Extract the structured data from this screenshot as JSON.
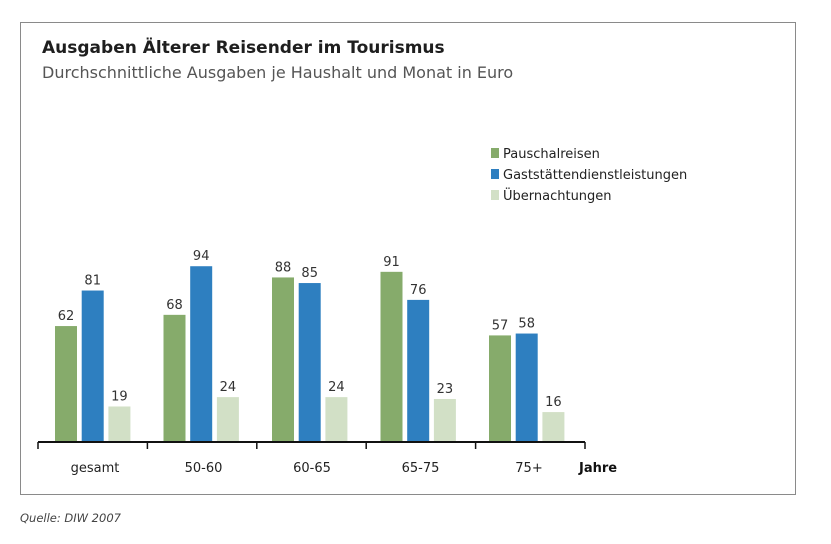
{
  "colors": {
    "pauschal": "#86ab6b",
    "gast": "#2e7fc0",
    "ueber": "#d2e0c6",
    "axis": "#111111"
  },
  "chart_data": {
    "type": "bar",
    "title": "Ausgaben Älterer Reisender im Tourismus",
    "subtitle": "Durchschnittliche Ausgaben je Haushalt und Monat in Euro",
    "xlabel": "Jahre",
    "ylabel": "",
    "categories": [
      "gesamt",
      "50-60",
      "60-65",
      "65-75",
      "75+"
    ],
    "series": [
      {
        "name": "Pauschalreisen",
        "values": [
          62,
          68,
          88,
          91,
          57
        ]
      },
      {
        "name": "Gaststättendienstleistungen",
        "values": [
          81,
          94,
          85,
          76,
          58
        ]
      },
      {
        "name": "Übernachtungen",
        "values": [
          19,
          24,
          24,
          23,
          16
        ]
      }
    ],
    "ylim": [
      0,
      100
    ],
    "grid": false,
    "legend": "top-right"
  },
  "source": "Quelle:  DIW 2007"
}
